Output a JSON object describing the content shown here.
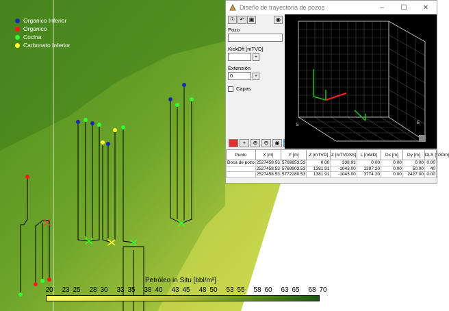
{
  "map": {
    "legend": [
      {
        "label": "Organico Inferior",
        "color": "#1a2ab0"
      },
      {
        "label": "Organico",
        "color": "#ff1a1a"
      },
      {
        "label": "Cocina",
        "color": "#33ff33"
      },
      {
        "label": "Carbonato Inferior",
        "color": "#ffff33"
      }
    ],
    "scale_title": "Petróleo in Situ [bbl/m²]",
    "scale_ticks": [
      "20",
      "23",
      "25",
      "28",
      "30",
      "33",
      "35",
      "38",
      "40",
      "43",
      "45",
      "48",
      "50",
      "53",
      "55",
      "58",
      "60",
      "63",
      "65",
      "68",
      "70"
    ],
    "scale_min": 20,
    "scale_max": 70
  },
  "window": {
    "title": "Diseño de trayectoria de pozos",
    "controls": [
      "–",
      "☐",
      "✕"
    ],
    "toolbar_icons": [
      "binoculars-icon",
      "undo-icon",
      "save-icon",
      "camera-icon"
    ],
    "pozo_label": "Pozo",
    "pozo_value": "",
    "kickoff_label": "KickOff [mTVD]",
    "kickoff_value": "",
    "extension_label": "Extensión",
    "extension_value": "0",
    "plus_label": "+",
    "capas_label": "Capas",
    "bottom_toolbar_icons": [
      "eraser-icon",
      "add-point-icon",
      "insert-point-icon",
      "delete-point-icon",
      "camera-icon",
      "display-icon"
    ],
    "view3d": {
      "axis_s": "S",
      "axis_e": "E"
    },
    "table": {
      "headers": [
        "Punto",
        "X [m]",
        "Y [m]",
        "Z [mTVD]",
        "Z [mTVDSS]",
        "L [mMD]",
        "Dx [m]",
        "Dy [m]",
        "DLS [°/30m]"
      ],
      "rows": [
        [
          "Boca de pozo",
          "2527458.53",
          "5769853.53",
          "0.00",
          "338.91",
          "0.00",
          "0.00",
          "0.00",
          "0.00"
        ],
        [
          "",
          "2527458.53",
          "5769903.53",
          "1381.91",
          "-1043.00",
          "1397.20",
          "0.00",
          "50.00",
          "40"
        ],
        [
          "",
          "2527458.53",
          "5772280.53",
          "1381.91",
          "-1043.00",
          "3774.20",
          "0.00",
          "2427.00",
          "0.00"
        ]
      ]
    }
  }
}
